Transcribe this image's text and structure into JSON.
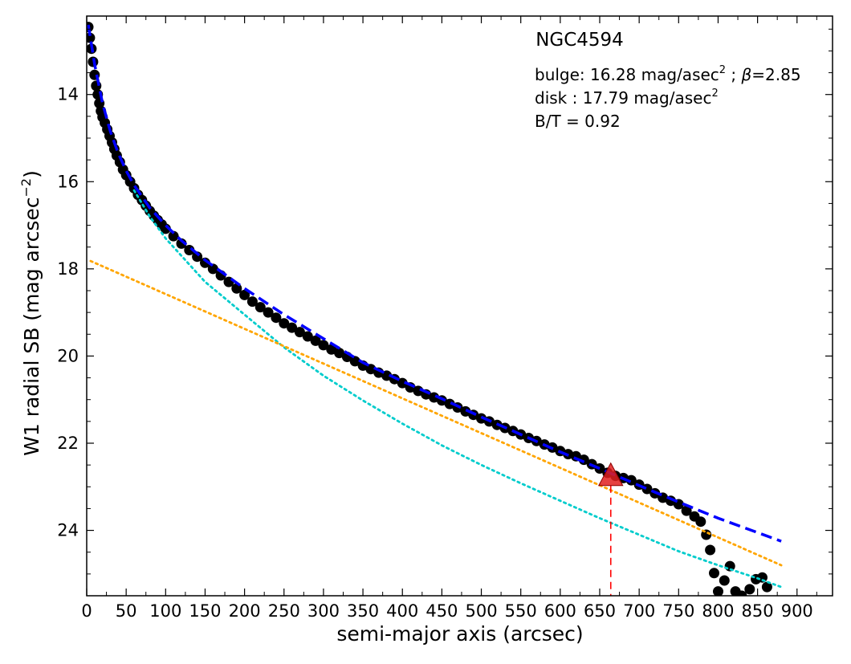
{
  "chart_data": {
    "type": "scatter",
    "title": "NGC4594",
    "xlabel": "semi-major axis (arcsec)",
    "ylabel_main": "W1 radial SB (mag arcsec",
    "ylabel_exp": "−2",
    "ylabel_close": ")",
    "xlim": [
      0,
      945
    ],
    "ylim": [
      25.5,
      12.2
    ],
    "y_inverted": true,
    "grid": false,
    "xticks": [
      0,
      50,
      100,
      150,
      200,
      250,
      300,
      350,
      400,
      450,
      500,
      550,
      600,
      650,
      700,
      750,
      800,
      850,
      900
    ],
    "yticks": [
      14,
      16,
      18,
      20,
      22,
      24
    ],
    "annotations": {
      "bulge_prefix": "bulge: 16.28 mag/asec",
      "bulge_sup": "2",
      "bulge_beta_sep": " ; ",
      "bulge_beta_symbol": "β",
      "bulge_beta_value": "=2.85",
      "disk_prefix": "disk  : 17.79 mag/asec",
      "disk_sup": "2",
      "bt": "B/T = 0.92"
    },
    "series": [
      {
        "kind": "observed-profile",
        "marker": "circle",
        "color": "#000000",
        "points": [
          [
            2,
            12.45
          ],
          [
            4,
            12.7
          ],
          [
            6,
            12.95
          ],
          [
            8,
            13.25
          ],
          [
            10,
            13.55
          ],
          [
            12,
            13.8
          ],
          [
            14,
            14.0
          ],
          [
            16,
            14.2
          ],
          [
            18,
            14.38
          ],
          [
            20,
            14.52
          ],
          [
            23,
            14.65
          ],
          [
            26,
            14.8
          ],
          [
            29,
            14.95
          ],
          [
            32,
            15.1
          ],
          [
            35,
            15.25
          ],
          [
            38,
            15.4
          ],
          [
            42,
            15.55
          ],
          [
            46,
            15.72
          ],
          [
            50,
            15.85
          ],
          [
            55,
            16.0
          ],
          [
            60,
            16.15
          ],
          [
            65,
            16.3
          ],
          [
            70,
            16.42
          ],
          [
            75,
            16.55
          ],
          [
            80,
            16.67
          ],
          [
            85,
            16.78
          ],
          [
            90,
            16.88
          ],
          [
            95,
            16.98
          ],
          [
            100,
            17.08
          ],
          [
            110,
            17.25
          ],
          [
            120,
            17.42
          ],
          [
            130,
            17.57
          ],
          [
            140,
            17.72
          ],
          [
            150,
            17.86
          ],
          [
            160,
            18.0
          ],
          [
            170,
            18.15
          ],
          [
            180,
            18.3
          ],
          [
            190,
            18.45
          ],
          [
            200,
            18.6
          ],
          [
            210,
            18.75
          ],
          [
            220,
            18.88
          ],
          [
            230,
            19.0
          ],
          [
            240,
            19.12
          ],
          [
            250,
            19.25
          ],
          [
            260,
            19.35
          ],
          [
            270,
            19.45
          ],
          [
            280,
            19.55
          ],
          [
            290,
            19.65
          ],
          [
            300,
            19.75
          ],
          [
            310,
            19.85
          ],
          [
            320,
            19.93
          ],
          [
            330,
            20.02
          ],
          [
            340,
            20.12
          ],
          [
            350,
            20.22
          ],
          [
            360,
            20.3
          ],
          [
            370,
            20.38
          ],
          [
            380,
            20.45
          ],
          [
            390,
            20.53
          ],
          [
            400,
            20.62
          ],
          [
            410,
            20.72
          ],
          [
            420,
            20.8
          ],
          [
            430,
            20.88
          ],
          [
            440,
            20.95
          ],
          [
            450,
            21.02
          ],
          [
            460,
            21.1
          ],
          [
            470,
            21.18
          ],
          [
            480,
            21.27
          ],
          [
            490,
            21.35
          ],
          [
            500,
            21.43
          ],
          [
            510,
            21.5
          ],
          [
            520,
            21.58
          ],
          [
            530,
            21.65
          ],
          [
            540,
            21.72
          ],
          [
            550,
            21.8
          ],
          [
            560,
            21.88
          ],
          [
            570,
            21.95
          ],
          [
            580,
            22.03
          ],
          [
            590,
            22.1
          ],
          [
            600,
            22.18
          ],
          [
            610,
            22.25
          ],
          [
            620,
            22.3
          ],
          [
            630,
            22.38
          ],
          [
            640,
            22.48
          ],
          [
            650,
            22.58
          ],
          [
            660,
            22.68
          ],
          [
            670,
            22.75
          ],
          [
            680,
            22.8
          ],
          [
            690,
            22.85
          ],
          [
            700,
            22.95
          ],
          [
            710,
            23.05
          ],
          [
            720,
            23.15
          ],
          [
            730,
            23.25
          ],
          [
            740,
            23.32
          ],
          [
            750,
            23.4
          ],
          [
            760,
            23.55
          ],
          [
            770,
            23.68
          ],
          [
            778,
            23.8
          ],
          [
            785,
            24.1
          ],
          [
            790,
            24.45
          ],
          [
            795,
            24.98
          ],
          [
            800,
            25.4
          ],
          [
            808,
            25.15
          ],
          [
            815,
            24.82
          ],
          [
            822,
            25.4
          ],
          [
            830,
            25.5
          ],
          [
            840,
            25.35
          ],
          [
            848,
            25.12
          ],
          [
            856,
            25.08
          ],
          [
            862,
            25.3
          ]
        ]
      },
      {
        "kind": "total-model",
        "style": "dashed",
        "color": "#0000ff",
        "points": [
          [
            2,
            12.4
          ],
          [
            10,
            13.3
          ],
          [
            20,
            14.2
          ],
          [
            30,
            14.85
          ],
          [
            40,
            15.35
          ],
          [
            50,
            15.75
          ],
          [
            60,
            16.08
          ],
          [
            80,
            16.6
          ],
          [
            100,
            17.0
          ],
          [
            120,
            17.35
          ],
          [
            150,
            17.8
          ],
          [
            200,
            18.45
          ],
          [
            250,
            19.05
          ],
          [
            300,
            19.6
          ],
          [
            350,
            20.15
          ],
          [
            400,
            20.58
          ],
          [
            450,
            20.98
          ],
          [
            500,
            21.4
          ],
          [
            550,
            21.8
          ],
          [
            600,
            22.2
          ],
          [
            650,
            22.58
          ],
          [
            700,
            22.97
          ],
          [
            750,
            23.35
          ],
          [
            800,
            23.72
          ],
          [
            850,
            24.05
          ],
          [
            880,
            24.25
          ]
        ]
      },
      {
        "kind": "bulge-model",
        "style": "dotted",
        "color": "#00cccc",
        "points": [
          [
            60,
            16.2
          ],
          [
            80,
            16.8
          ],
          [
            100,
            17.3
          ],
          [
            150,
            18.3
          ],
          [
            200,
            19.05
          ],
          [
            250,
            19.8
          ],
          [
            300,
            20.45
          ],
          [
            350,
            21.02
          ],
          [
            400,
            21.55
          ],
          [
            450,
            22.05
          ],
          [
            500,
            22.5
          ],
          [
            550,
            22.92
          ],
          [
            600,
            23.32
          ],
          [
            650,
            23.72
          ],
          [
            700,
            24.1
          ],
          [
            750,
            24.48
          ],
          [
            800,
            24.8
          ],
          [
            850,
            25.1
          ],
          [
            880,
            25.3
          ]
        ]
      },
      {
        "kind": "disk-model",
        "style": "dotted",
        "color": "#ffa500",
        "points": [
          [
            5,
            17.82
          ],
          [
            880,
            24.8
          ]
        ]
      }
    ],
    "marker_point": {
      "x": 664,
      "y": 22.75,
      "color": "#e02020"
    },
    "vline": {
      "x": 664,
      "color": "#ff0000",
      "style": "dashed"
    }
  }
}
